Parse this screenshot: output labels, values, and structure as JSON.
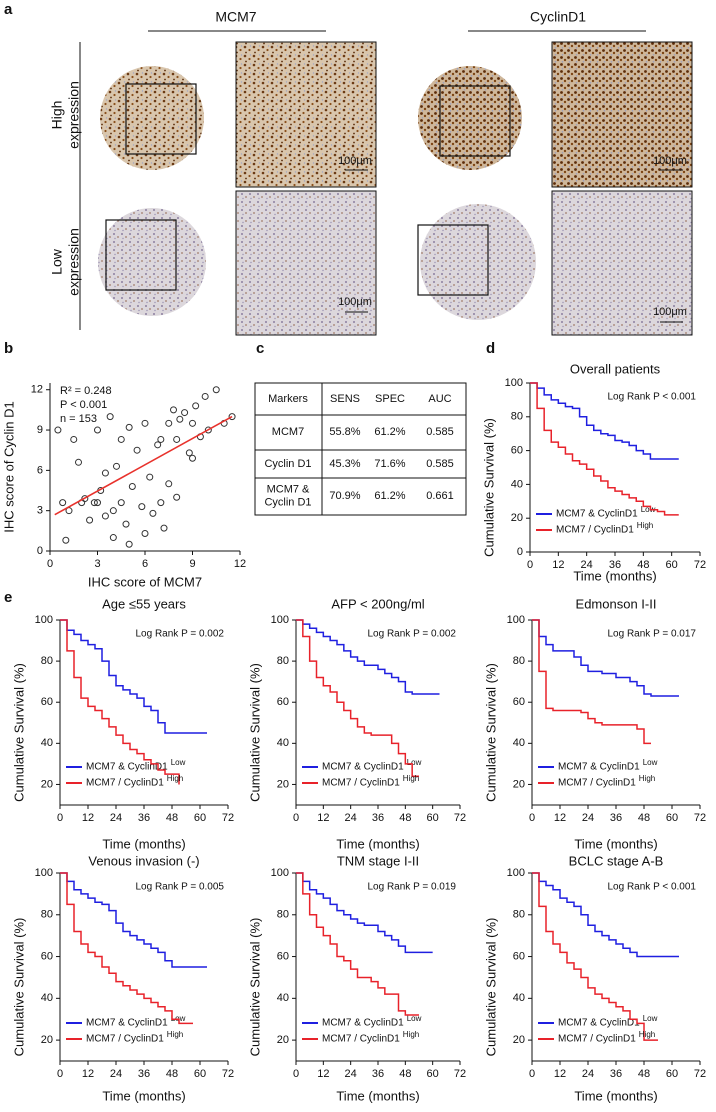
{
  "figure_a": {
    "label": "a",
    "columns": [
      "MCM7",
      "CyclinD1"
    ],
    "rows": [
      [
        "High",
        "expression"
      ],
      [
        "Low",
        "expression"
      ]
    ],
    "scale_bar": "100μm"
  },
  "table": {
    "label": "c",
    "header": [
      "Markers",
      "SENS",
      "SPEC",
      "AUC"
    ],
    "rows": [
      [
        [
          "MCM7"
        ],
        "55.8%",
        "61.2%",
        "0.585"
      ],
      [
        [
          "Cyclin D1"
        ],
        "45.3%",
        "71.6%",
        "0.585"
      ],
      [
        [
          "MCM7 &",
          "Cyclin D1"
        ],
        "70.9%",
        "61.2%",
        "0.661"
      ]
    ]
  },
  "chart_data": [
    {
      "type": "scatter",
      "panel": "b",
      "x_label": "IHC score of MCM7",
      "y_label": "IHC score of Cyclin D1",
      "annotations": [
        "R² = 0.248",
        "P < 0.001",
        "n = 153"
      ],
      "marker_color": "#333333",
      "x": [
        0.5,
        0.8,
        1,
        1.2,
        1.5,
        1.8,
        2,
        2.2,
        2.5,
        2.8,
        3,
        3,
        3.2,
        3.5,
        3.5,
        3.8,
        4,
        4,
        4.2,
        4.5,
        4.5,
        4.8,
        5,
        5,
        5.2,
        5.5,
        5.8,
        6,
        6,
        6.3,
        6.5,
        6.8,
        7,
        7,
        7.2,
        7.5,
        7.5,
        7.8,
        8,
        8,
        8.2,
        8.5,
        8.8,
        9,
        9,
        9.2,
        9.5,
        9.8,
        10,
        10.5,
        11,
        11.5
      ],
      "values": [
        9,
        3.6,
        0.8,
        3,
        8.3,
        6.6,
        3.6,
        3.9,
        2.3,
        3.6,
        9,
        3.6,
        4.5,
        5.8,
        2.6,
        10,
        3,
        1,
        6.3,
        8.3,
        3.6,
        2,
        9.2,
        0.5,
        4.8,
        7.5,
        3.3,
        9.5,
        1.3,
        5.5,
        2.8,
        7.9,
        8.3,
        3.6,
        1.7,
        9.5,
        5,
        10.5,
        8.3,
        4,
        9.8,
        10.3,
        7.3,
        9.5,
        6.9,
        10.8,
        8.5,
        11.5,
        9,
        12,
        9.5,
        10
      ],
      "trendline": {
        "x": [
          0.3,
          11.5
        ],
        "values": [
          2.7,
          10
        ],
        "color": "#e8322c"
      },
      "xlim": [
        0,
        12
      ],
      "ylim": [
        0,
        12.5
      ],
      "xticks": [
        0,
        3,
        6,
        9,
        12
      ],
      "yticks": [
        0,
        3,
        6,
        9,
        12
      ]
    },
    {
      "type": "line",
      "step": true,
      "panel": "d",
      "title": "Overall patients",
      "annotation": "Log Rank P < 0.001",
      "x_label": "Time (months)",
      "y_label": "Cumulative Survival (%)",
      "x": [
        0,
        3,
        6,
        9,
        12,
        15,
        18,
        21,
        24,
        27,
        30,
        33,
        36,
        39,
        42,
        45,
        48,
        51,
        54,
        57,
        60,
        63
      ],
      "series": [
        {
          "name": "MCM7 & CyclinD1",
          "superscript": "Low",
          "color": "#1f1fe0",
          "values": [
            100,
            97,
            93,
            90,
            88,
            86,
            85,
            80,
            75,
            72,
            70,
            69,
            66,
            65,
            63,
            60,
            58,
            55,
            55,
            55,
            55,
            55
          ]
        },
        {
          "name": "MCM7 / CyclinD1",
          "superscript": "High",
          "color": "#e8222a",
          "values": [
            100,
            85,
            72,
            65,
            62,
            58,
            54,
            52,
            49,
            45,
            42,
            38,
            36,
            34,
            32,
            30,
            27,
            25,
            24,
            22,
            22,
            22
          ]
        }
      ],
      "xlim": [
        0,
        72
      ],
      "ylim": [
        0,
        100
      ],
      "xticks": [
        0,
        12,
        24,
        36,
        48,
        60,
        72
      ],
      "yticks": [
        0,
        20,
        40,
        60,
        80,
        100
      ],
      "legend": "lower left"
    },
    {
      "type": "line",
      "step": true,
      "panel": "e",
      "title": "Age ≤55 years",
      "annotation": "Log Rank P = 0.002",
      "x_label": "Time (months)",
      "y_label": "Cumulative Survival (%)",
      "x": [
        0,
        3,
        6,
        9,
        12,
        15,
        18,
        21,
        24,
        27,
        30,
        33,
        36,
        39,
        42,
        45,
        48,
        51,
        54,
        57,
        60,
        63
      ],
      "series": [
        {
          "name": "MCM7 & CyclinD1",
          "superscript": "Low",
          "color": "#1f1fe0",
          "values": [
            100,
            95,
            93,
            90,
            88,
            86,
            80,
            73,
            68,
            66,
            64,
            62,
            58,
            56,
            50,
            45,
            45,
            45,
            45,
            45,
            45,
            45
          ]
        },
        {
          "name": "MCM7 / CyclinD1",
          "superscript": "High",
          "color": "#e8222a",
          "values": [
            100,
            85,
            72,
            62,
            58,
            56,
            52,
            48,
            44,
            40,
            37,
            35,
            32,
            30,
            27,
            25,
            25,
            20,
            null,
            null,
            null,
            null
          ]
        }
      ],
      "xlim": [
        0,
        72
      ],
      "ylim": [
        10,
        100
      ],
      "xticks": [
        0,
        12,
        24,
        36,
        48,
        60,
        72
      ],
      "yticks": [
        20,
        40,
        60,
        80,
        100
      ],
      "legend": "lower left"
    },
    {
      "type": "line",
      "step": true,
      "title": "AFP < 200ng/ml",
      "annotation": "Log Rank P = 0.002",
      "x_label": "Time (months)",
      "y_label": "Cumulative Survival (%)",
      "x": [
        0,
        3,
        6,
        9,
        12,
        15,
        18,
        21,
        24,
        27,
        30,
        33,
        36,
        39,
        42,
        45,
        48,
        51,
        54,
        57,
        60,
        63
      ],
      "series": [
        {
          "name": "MCM7 & CyclinD1",
          "superscript": "Low",
          "color": "#1f1fe0",
          "values": [
            100,
            98,
            96,
            94,
            92,
            90,
            88,
            85,
            82,
            80,
            78,
            78,
            76,
            74,
            72,
            70,
            65,
            64,
            64,
            64,
            64,
            64
          ]
        },
        {
          "name": "MCM7 / CyclinD1",
          "superscript": "High",
          "color": "#e8222a",
          "values": [
            100,
            92,
            80,
            72,
            68,
            65,
            60,
            56,
            52,
            48,
            45,
            44,
            44,
            44,
            40,
            35,
            30,
            24,
            24,
            null,
            null,
            null
          ]
        }
      ],
      "xlim": [
        0,
        72
      ],
      "ylim": [
        10,
        100
      ],
      "xticks": [
        0,
        12,
        24,
        36,
        48,
        60,
        72
      ],
      "yticks": [
        20,
        40,
        60,
        80,
        100
      ],
      "legend": "lower left"
    },
    {
      "type": "line",
      "step": true,
      "title": "Edmonson I-II",
      "annotation": "Log Rank P = 0.017",
      "x_label": "Time (months)",
      "y_label": "Cumulative Survival (%)",
      "x": [
        0,
        3,
        6,
        9,
        12,
        15,
        18,
        21,
        24,
        27,
        30,
        33,
        36,
        39,
        42,
        45,
        48,
        51,
        54,
        57,
        60,
        63
      ],
      "series": [
        {
          "name": "MCM7 & CyclinD1",
          "superscript": "Low",
          "color": "#1f1fe0",
          "values": [
            100,
            92,
            88,
            85,
            85,
            85,
            82,
            78,
            75,
            75,
            74,
            74,
            72,
            72,
            70,
            68,
            64,
            63,
            63,
            63,
            63,
            63
          ]
        },
        {
          "name": "MCM7 / CyclinD1",
          "superscript": "High",
          "color": "#e8222a",
          "values": [
            100,
            75,
            57,
            56,
            56,
            56,
            56,
            55,
            52,
            50,
            49,
            49,
            49,
            49,
            49,
            47,
            40,
            40,
            null,
            null,
            null,
            null
          ]
        }
      ],
      "xlim": [
        0,
        72
      ],
      "ylim": [
        10,
        100
      ],
      "xticks": [
        0,
        12,
        24,
        36,
        48,
        60,
        72
      ],
      "yticks": [
        20,
        40,
        60,
        80,
        100
      ],
      "legend": "lower left"
    },
    {
      "type": "line",
      "step": true,
      "title": "Venous invasion (-)",
      "annotation": "Log Rank P = 0.005",
      "x_label": "Time (months)",
      "y_label": "Cumulative Survival (%)",
      "x": [
        0,
        3,
        6,
        9,
        12,
        15,
        18,
        21,
        24,
        27,
        30,
        33,
        36,
        39,
        42,
        45,
        48,
        51,
        54,
        57,
        60,
        63
      ],
      "series": [
        {
          "name": "MCM7 & CyclinD1",
          "superscript": "Low",
          "color": "#1f1fe0",
          "values": [
            100,
            96,
            92,
            90,
            88,
            86,
            85,
            82,
            76,
            72,
            70,
            68,
            66,
            64,
            62,
            58,
            55,
            55,
            55,
            55,
            55,
            55
          ]
        },
        {
          "name": "MCM7 / CyclinD1",
          "superscript": "High",
          "color": "#e8222a",
          "values": [
            100,
            85,
            72,
            66,
            62,
            60,
            55,
            52,
            48,
            46,
            44,
            42,
            40,
            38,
            36,
            34,
            30,
            28,
            28,
            28,
            null,
            null
          ]
        }
      ],
      "xlim": [
        0,
        72
      ],
      "ylim": [
        10,
        100
      ],
      "xticks": [
        0,
        12,
        24,
        36,
        48,
        60,
        72
      ],
      "yticks": [
        20,
        40,
        60,
        80,
        100
      ],
      "legend": "lower left"
    },
    {
      "type": "line",
      "step": true,
      "title": "TNM stage I-II",
      "annotation": "Log Rank P = 0.019",
      "x_label": "Time (months)",
      "y_label": "Cumulative Survival (%)",
      "x": [
        0,
        3,
        6,
        9,
        12,
        15,
        18,
        21,
        24,
        27,
        30,
        33,
        36,
        39,
        42,
        45,
        48,
        51,
        54,
        57,
        60,
        63
      ],
      "series": [
        {
          "name": "MCM7 & CyclinD1",
          "superscript": "Low",
          "color": "#1f1fe0",
          "values": [
            100,
            96,
            92,
            90,
            88,
            85,
            82,
            80,
            78,
            76,
            75,
            75,
            72,
            70,
            68,
            65,
            62,
            62,
            62,
            62,
            62,
            null
          ]
        },
        {
          "name": "MCM7 / CyclinD1",
          "superscript": "High",
          "color": "#e8222a",
          "values": [
            100,
            90,
            80,
            74,
            70,
            66,
            60,
            58,
            54,
            50,
            50,
            48,
            45,
            42,
            42,
            34,
            32,
            32,
            32,
            null,
            null,
            null
          ]
        }
      ],
      "xlim": [
        0,
        72
      ],
      "ylim": [
        10,
        100
      ],
      "xticks": [
        0,
        12,
        24,
        36,
        48,
        60,
        72
      ],
      "yticks": [
        20,
        40,
        60,
        80,
        100
      ],
      "legend": "lower left"
    },
    {
      "type": "line",
      "step": true,
      "title": "BCLC stage A-B",
      "annotation": "Log Rank P < 0.001",
      "x_label": "Time (months)",
      "y_label": "Cumulative Survival (%)",
      "x": [
        0,
        3,
        6,
        9,
        12,
        15,
        18,
        21,
        24,
        27,
        30,
        33,
        36,
        39,
        42,
        45,
        48,
        51,
        54,
        57,
        60,
        63
      ],
      "series": [
        {
          "name": "MCM7 & CyclinD1",
          "superscript": "Low",
          "color": "#1f1fe0",
          "values": [
            100,
            96,
            94,
            92,
            88,
            86,
            84,
            80,
            75,
            72,
            70,
            68,
            66,
            64,
            62,
            60,
            60,
            60,
            60,
            60,
            60,
            60
          ]
        },
        {
          "name": "MCM7 / CyclinD1",
          "superscript": "High",
          "color": "#e8222a",
          "values": [
            100,
            84,
            72,
            66,
            62,
            57,
            54,
            50,
            45,
            42,
            40,
            38,
            36,
            34,
            30,
            28,
            20,
            20,
            20,
            null,
            null,
            null
          ]
        }
      ],
      "xlim": [
        0,
        72
      ],
      "ylim": [
        10,
        100
      ],
      "xticks": [
        0,
        12,
        24,
        36,
        48,
        60,
        72
      ],
      "yticks": [
        20,
        40,
        60,
        80,
        100
      ],
      "legend": "lower left"
    }
  ]
}
